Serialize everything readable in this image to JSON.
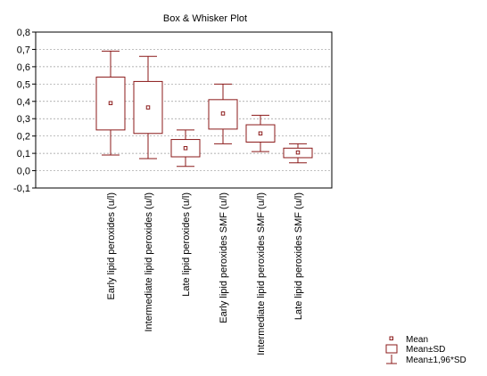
{
  "chart_data": {
    "type": "boxplot",
    "title": "Box & Whisker Plot",
    "xlabel": "",
    "ylabel": "",
    "ylim": [
      -0.1,
      0.8
    ],
    "yticks": [
      -0.1,
      0.0,
      0.1,
      0.2,
      0.3,
      0.4,
      0.5,
      0.6,
      0.7,
      0.8
    ],
    "ytick_labels": [
      "-0,1",
      "0,0",
      "0,1",
      "0,2",
      "0,3",
      "0,4",
      "0,5",
      "0,6",
      "0,7",
      "0,8"
    ],
    "grid": true,
    "categories": [
      "Early lipid peroxides (u/l)",
      "Intermediate lipid peroxides (u/l)",
      "Late lipid peroxides (u/l)",
      "Early lipid peroxides SMF (u/l)",
      "Intermediate lipid peroxides SMF (u/l)",
      "Late lipid peroxides SMF (u/l)"
    ],
    "mean": [
      0.39,
      0.365,
      0.13,
      0.33,
      0.215,
      0.105
    ],
    "sd_low": [
      0.235,
      0.215,
      0.08,
      0.24,
      0.165,
      0.075
    ],
    "sd_high": [
      0.54,
      0.515,
      0.18,
      0.41,
      0.265,
      0.13
    ],
    "ci_low": [
      0.09,
      0.07,
      0.025,
      0.155,
      0.11,
      0.045
    ],
    "ci_high": [
      0.69,
      0.66,
      0.235,
      0.5,
      0.32,
      0.155
    ],
    "legend": {
      "position": "bottom-right",
      "entries": [
        "Mean",
        "Mean±SD",
        "Mean±1,96*SD"
      ]
    },
    "colors": {
      "series": "#8b1a1a",
      "grid": "#9a9a9a",
      "axis": "#000000"
    }
  }
}
